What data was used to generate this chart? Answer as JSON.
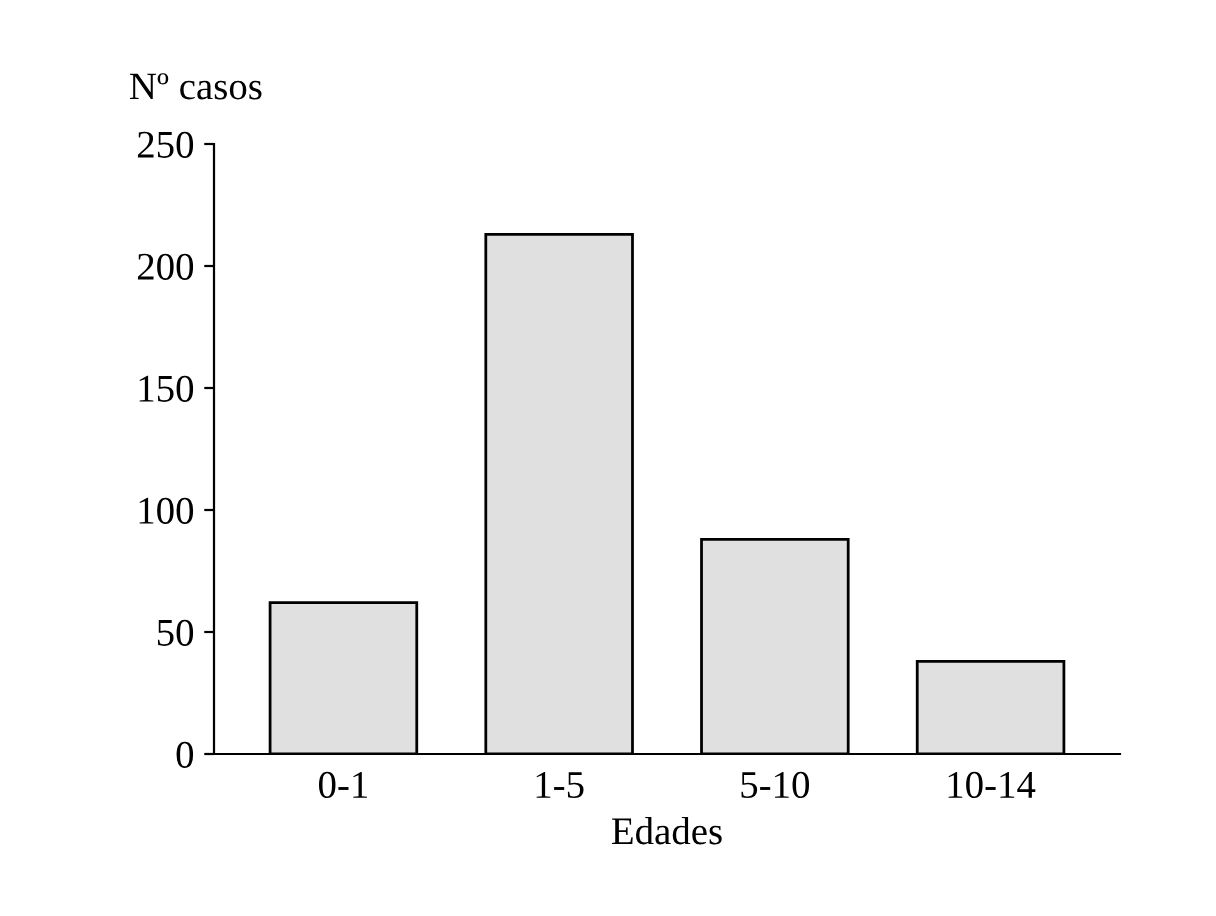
{
  "chart_data": {
    "type": "bar",
    "xlabel": "Edades",
    "ylabel": "Nº casos",
    "categories": [
      "0-1",
      "1-5",
      "5-10",
      "10-14"
    ],
    "values": [
      62,
      213,
      88,
      38
    ],
    "color": "#e0e0e0",
    "ylim": [
      0,
      250
    ],
    "yticks": [
      0,
      50,
      100,
      150,
      200,
      250
    ],
    "grid": false
  }
}
